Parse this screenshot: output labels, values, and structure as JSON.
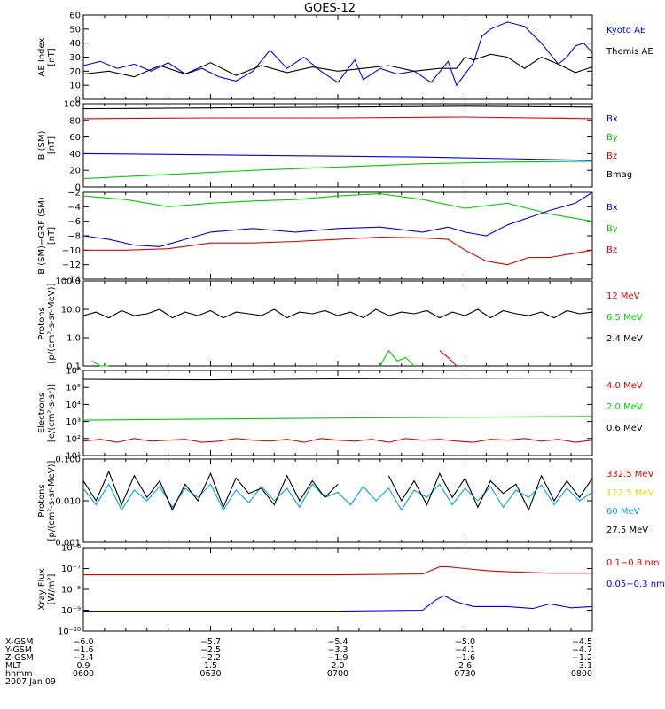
{
  "title": "GOES-12",
  "colors": {
    "black": "#000000",
    "blue": "#0000ee",
    "red": "#dd0000",
    "green": "#00cc00",
    "yellow": "#dddd00",
    "cyan": "#00a0e0"
  },
  "chart_data": [
    {
      "type": "line",
      "ylabel": [
        "AE Index",
        "[nT]"
      ],
      "ylim": [
        0,
        60
      ],
      "log": false,
      "yticks": [
        0,
        10,
        20,
        30,
        40,
        50,
        60
      ],
      "ytick_labels": [
        "0",
        "10",
        "20",
        "30",
        "40",
        "50",
        "60"
      ],
      "legend": [
        {
          "name": "Kyoto AE",
          "color": "#0000ee"
        },
        {
          "name": "Themis AE",
          "color": "#000000"
        }
      ],
      "series": [
        {
          "name": "Kyoto AE",
          "color": "#0000ee",
          "x": [
            0,
            4,
            8,
            12,
            16,
            20,
            24,
            28,
            32,
            36,
            40,
            44,
            48,
            52,
            56,
            60,
            64,
            66,
            70,
            74,
            78,
            82,
            86,
            88,
            92,
            94,
            96,
            100,
            104,
            108,
            112,
            114,
            116,
            118,
            120
          ],
          "y": [
            24,
            27,
            22,
            25,
            20,
            26,
            18,
            22,
            16,
            13,
            20,
            35,
            22,
            30,
            20,
            12,
            28,
            14,
            22,
            18,
            20,
            12,
            27,
            10,
            26,
            45,
            50,
            55,
            52,
            40,
            25,
            30,
            38,
            40,
            33
          ]
        },
        {
          "name": "Themis AE",
          "color": "#000000",
          "x": [
            0,
            6,
            12,
            18,
            24,
            30,
            36,
            42,
            48,
            54,
            60,
            66,
            72,
            78,
            84,
            88,
            90,
            92,
            96,
            100,
            104,
            108,
            112,
            116,
            120
          ],
          "y": [
            18,
            20,
            16,
            24,
            18,
            26,
            17,
            24,
            19,
            23,
            20,
            22,
            24,
            20,
            22,
            22,
            30,
            28,
            32,
            30,
            22,
            30,
            25,
            19,
            23
          ]
        }
      ]
    },
    {
      "type": "line",
      "ylabel": [
        "B (SM)",
        "[nT]"
      ],
      "ylim": [
        0,
        100
      ],
      "log": false,
      "yticks": [
        0,
        20,
        40,
        60,
        80,
        100
      ],
      "ytick_labels": [
        "0",
        "20",
        "40",
        "60",
        "80",
        "100"
      ],
      "legend": [
        {
          "name": "Bx",
          "color": "#0000ee"
        },
        {
          "name": "By",
          "color": "#00cc00"
        },
        {
          "name": "Bz",
          "color": "#dd0000"
        },
        {
          "name": "Bmag",
          "color": "#000000"
        }
      ],
      "series": [
        {
          "name": "Bmag",
          "color": "#000000",
          "x": [
            0,
            30,
            60,
            90,
            120
          ],
          "y": [
            94,
            95,
            96,
            97,
            96
          ]
        },
        {
          "name": "Bz",
          "color": "#dd0000",
          "x": [
            0,
            30,
            60,
            90,
            120
          ],
          "y": [
            82,
            83,
            83,
            84,
            82
          ]
        },
        {
          "name": "Bx",
          "color": "#0000ee",
          "x": [
            0,
            20,
            40,
            60,
            80,
            100,
            120
          ],
          "y": [
            40,
            39,
            38,
            37,
            36,
            34,
            32
          ]
        },
        {
          "name": "By",
          "color": "#00cc00",
          "x": [
            0,
            20,
            40,
            60,
            80,
            100,
            120
          ],
          "y": [
            10,
            15,
            20,
            24,
            28,
            30,
            31
          ]
        }
      ]
    },
    {
      "type": "line",
      "ylabel": [
        "B (SM)−GRF (SM)",
        "[nT]"
      ],
      "ylim": [
        -14,
        -2
      ],
      "log": false,
      "yticks": [
        -14,
        -12,
        -10,
        -8,
        -6,
        -4,
        -2
      ],
      "ytick_labels": [
        "−14",
        "−12",
        "−10",
        "−8",
        "−6",
        "−4",
        "−2"
      ],
      "legend": [
        {
          "name": "Bx",
          "color": "#0000ee"
        },
        {
          "name": "By",
          "color": "#00cc00"
        },
        {
          "name": "Bz",
          "color": "#dd0000"
        }
      ],
      "series": [
        {
          "name": "By",
          "color": "#00cc00",
          "x": [
            0,
            10,
            20,
            30,
            40,
            50,
            60,
            70,
            80,
            90,
            100,
            110,
            120
          ],
          "y": [
            -2.5,
            -3,
            -4,
            -3.5,
            -3.2,
            -3,
            -2.5,
            -2.2,
            -3,
            -4.2,
            -3.5,
            -5,
            -6
          ]
        },
        {
          "name": "Bx",
          "color": "#0000ee",
          "x": [
            0,
            6,
            12,
            18,
            24,
            30,
            40,
            50,
            60,
            70,
            80,
            86,
            90,
            95,
            100,
            105,
            110,
            116,
            120
          ],
          "y": [
            -8,
            -8.5,
            -9.3,
            -9.5,
            -8.5,
            -7.5,
            -7,
            -7.5,
            -7,
            -6.8,
            -7.5,
            -6.8,
            -7.5,
            -8,
            -6.5,
            -5.5,
            -4.5,
            -3.5,
            -2
          ]
        },
        {
          "name": "Bz",
          "color": "#dd0000",
          "x": [
            0,
            10,
            20,
            30,
            40,
            50,
            60,
            70,
            80,
            86,
            90,
            95,
            100,
            105,
            110,
            115,
            120
          ],
          "y": [
            -10,
            -10,
            -9.8,
            -9,
            -9,
            -8.8,
            -8.5,
            -8.2,
            -8.3,
            -8.5,
            -10,
            -11.5,
            -12,
            -11,
            -11,
            -10.5,
            -10
          ]
        }
      ]
    },
    {
      "type": "line",
      "ylabel": [
        "Protons",
        "[p/(cm²-s-sr-MeV)]"
      ],
      "ylim": [
        0.1,
        100
      ],
      "log": true,
      "yticks": [
        0.1,
        1,
        10,
        100
      ],
      "ytick_labels": [
        "0.1",
        "1.0",
        "10.0",
        "100.0"
      ],
      "legend": [
        {
          "name": "12 MeV",
          "color": "#dd0000"
        },
        {
          "name": "6.5 MeV",
          "color": "#00cc00"
        },
        {
          "name": "2.4 MeV",
          "color": "#000000"
        }
      ],
      "series": [
        {
          "name": "2.4 MeV",
          "color": "#000000",
          "x": [
            0,
            3,
            6,
            9,
            12,
            15,
            18,
            21,
            24,
            27,
            30,
            33,
            36,
            39,
            42,
            45,
            48,
            51,
            54,
            57,
            60,
            63,
            66,
            69,
            72,
            75,
            78,
            81,
            84,
            87,
            90,
            93,
            96,
            99,
            102,
            105,
            108,
            111,
            114,
            117,
            120
          ],
          "y": [
            6,
            8,
            5,
            9,
            6,
            7,
            10,
            5,
            8,
            6,
            9,
            5,
            8,
            7,
            6,
            10,
            5,
            8,
            7,
            9,
            6,
            8,
            5,
            10,
            6,
            8,
            7,
            9,
            5,
            8,
            6,
            10,
            5,
            9,
            7,
            6,
            8,
            5,
            9,
            7,
            8
          ]
        },
        {
          "name": "6.5 MeV",
          "color": "#00cc00",
          "x": [
            2,
            4,
            6
          ],
          "y": [
            0.15,
            0.1,
            0.1
          ]
        },
        {
          "name": "6.5 MeV",
          "color": "#00cc00",
          "x": [
            70,
            72,
            74,
            76,
            78
          ],
          "y": [
            0.1,
            0.35,
            0.15,
            0.2,
            0.1
          ]
        },
        {
          "name": "12 MeV",
          "color": "#dd0000",
          "x": [
            84,
            86,
            88
          ],
          "y": [
            0.35,
            0.2,
            0.1
          ]
        }
      ]
    },
    {
      "type": "line",
      "ylabel": [
        "Electrons",
        "[e/(cm²-s-sr)]"
      ],
      "ylim": [
        10,
        1000000
      ],
      "log": true,
      "yticks": [
        10,
        100,
        1000,
        10000,
        100000,
        1000000
      ],
      "ytick_labels": [
        "10¹",
        "10²",
        "10³",
        "10⁴",
        "10⁵",
        "10⁶"
      ],
      "legend": [
        {
          "name": "4.0 MeV",
          "color": "#dd0000"
        },
        {
          "name": "2.0 MeV",
          "color": "#00cc00"
        },
        {
          "name": "0.6 MeV",
          "color": "#000000"
        }
      ],
      "series": [
        {
          "name": "0.6 MeV",
          "color": "#000000",
          "x": [
            0,
            30,
            60,
            90,
            120
          ],
          "y": [
            300000,
            280000,
            320000,
            350000,
            360000
          ]
        },
        {
          "name": "2.0 MeV",
          "color": "#00cc00",
          "x": [
            0,
            30,
            60,
            90,
            120
          ],
          "y": [
            1200,
            1400,
            1600,
            1800,
            2000
          ]
        },
        {
          "name": "4.0 MeV",
          "color": "#dd0000",
          "x": [
            0,
            4,
            8,
            12,
            16,
            20,
            24,
            28,
            32,
            36,
            40,
            44,
            48,
            52,
            56,
            60,
            64,
            68,
            72,
            76,
            80,
            84,
            88,
            92,
            96,
            100,
            104,
            108,
            112,
            116,
            120
          ],
          "y": [
            70,
            90,
            60,
            100,
            70,
            80,
            90,
            60,
            70,
            100,
            80,
            70,
            90,
            60,
            100,
            80,
            70,
            90,
            60,
            100,
            80,
            90,
            70,
            60,
            90,
            80,
            100,
            70,
            90,
            60,
            80
          ]
        }
      ]
    },
    {
      "type": "line",
      "ylabel": [
        "Protons",
        "[p/(cm²-s-sr-MeV)]"
      ],
      "ylim": [
        0.001,
        0.1
      ],
      "log": true,
      "yticks": [
        0.001,
        0.01,
        0.1
      ],
      "ytick_labels": [
        "0.001",
        "0.010",
        "0.100"
      ],
      "legend": [
        {
          "name": "332.5 MeV",
          "color": "#dd0000"
        },
        {
          "name": "122.5 MeV",
          "color": "#dddd00"
        },
        {
          "name": "60 MeV",
          "color": "#00a0e0"
        },
        {
          "name": "27.5 MeV",
          "color": "#000000"
        }
      ],
      "series": [
        {
          "name": "60 MeV",
          "color": "#00a0e0",
          "x": [
            0,
            3,
            6,
            9,
            12,
            15,
            18,
            21,
            24,
            27,
            30,
            33,
            36,
            39,
            42,
            45,
            48,
            51,
            54,
            57,
            60,
            63,
            66,
            69,
            72,
            75,
            78,
            81,
            84,
            87,
            90,
            93,
            96,
            99,
            102,
            105,
            108,
            111,
            114,
            117,
            120
          ],
          "y": [
            0.02,
            0.008,
            0.025,
            0.006,
            0.018,
            0.01,
            0.022,
            0.007,
            0.02,
            0.012,
            0.025,
            0.006,
            0.018,
            0.009,
            0.022,
            0.01,
            0.02,
            0.007,
            0.025,
            0.012,
            0.016,
            0.008,
            0.022,
            0.01,
            0.02,
            0.006,
            0.018,
            0.012,
            0.025,
            0.008,
            0.02,
            0.01,
            0.022,
            0.007,
            0.018,
            0.012,
            0.024,
            0.008,
            0.02,
            0.01,
            0.016
          ]
        },
        {
          "name": "27.5 MeV",
          "color": "#000000",
          "x": [
            0,
            3,
            6,
            9,
            12,
            15,
            18,
            21,
            24,
            27,
            30,
            33,
            36,
            39,
            42,
            45,
            48,
            51,
            54,
            57,
            60
          ],
          "y": [
            0.03,
            0.01,
            0.05,
            0.008,
            0.04,
            0.012,
            0.03,
            0.006,
            0.025,
            0.01,
            0.045,
            0.007,
            0.035,
            0.015,
            0.02,
            0.008,
            0.04,
            0.01,
            0.03,
            0.012,
            0.025
          ]
        },
        {
          "name": "27.5 MeV",
          "color": "#000000",
          "x": [
            72,
            75,
            78,
            81,
            84,
            87,
            90,
            93,
            96,
            99,
            102,
            105,
            108,
            111,
            114,
            117,
            120
          ],
          "y": [
            0.04,
            0.01,
            0.03,
            0.008,
            0.045,
            0.012,
            0.035,
            0.007,
            0.03,
            0.015,
            0.025,
            0.006,
            0.04,
            0.01,
            0.03,
            0.012,
            0.035
          ]
        }
      ]
    },
    {
      "type": "line",
      "ylabel": [
        "Xray Flux",
        "[W/m²]"
      ],
      "ylim": [
        1e-10,
        1e-06
      ],
      "log": true,
      "yticks": [
        1e-10,
        1e-09,
        1e-08,
        1e-07,
        1e-06
      ],
      "ytick_labels": [
        "10⁻¹⁰",
        "10⁻⁹",
        "10⁻⁸",
        "10⁻⁷",
        "10⁻⁶"
      ],
      "legend": [
        {
          "name": "0.1−0.8 nm",
          "color": "#dd0000"
        },
        {
          "name": "0.05−0.3 nm",
          "color": "#0000ee"
        }
      ],
      "series": [
        {
          "name": "0.1−0.8 nm",
          "color": "#dd0000",
          "x": [
            0,
            20,
            40,
            60,
            80,
            84,
            86,
            90,
            95,
            100,
            110,
            120
          ],
          "y": [
            5e-08,
            5e-08,
            5e-08,
            5e-08,
            5.5e-08,
            1.2e-07,
            1.2e-07,
            1e-07,
            8e-08,
            7e-08,
            6e-08,
            6e-08
          ]
        },
        {
          "name": "0.05−0.3 nm",
          "color": "#0000ee",
          "x": [
            0,
            20,
            40,
            60,
            80,
            83,
            85,
            88,
            92,
            100,
            106,
            110,
            115,
            120
          ],
          "y": [
            9e-10,
            9e-10,
            9e-10,
            9e-10,
            1e-09,
            3e-09,
            5e-09,
            2.5e-09,
            1.5e-09,
            1.5e-09,
            1.2e-09,
            2e-09,
            1.3e-09,
            1.5e-09
          ]
        }
      ]
    }
  ],
  "x_axis": {
    "xlim": [
      0,
      120
    ],
    "row_labels": [
      "X-GSM",
      "Y-GSM",
      "Z-GSM",
      "MLT",
      "hhmm"
    ],
    "date": "2007 Jan 09",
    "ticks": [
      {
        "x": 0,
        "values": [
          "−6.0",
          "−1.6",
          "−2.4",
          "0.9",
          "0600"
        ]
      },
      {
        "x": 30,
        "values": [
          "−5.7",
          "−2.5",
          "−2.2",
          "1.5",
          "0630"
        ]
      },
      {
        "x": 60,
        "values": [
          "−5.4",
          "−3.3",
          "−1.9",
          "2.0",
          "0700"
        ]
      },
      {
        "x": 90,
        "values": [
          "−5.0",
          "−4.1",
          "−1.6",
          "2.6",
          "0730"
        ]
      },
      {
        "x": 120,
        "values": [
          "−4.5",
          "−4.7",
          "−1.2",
          "3.1",
          "0800"
        ]
      }
    ]
  }
}
